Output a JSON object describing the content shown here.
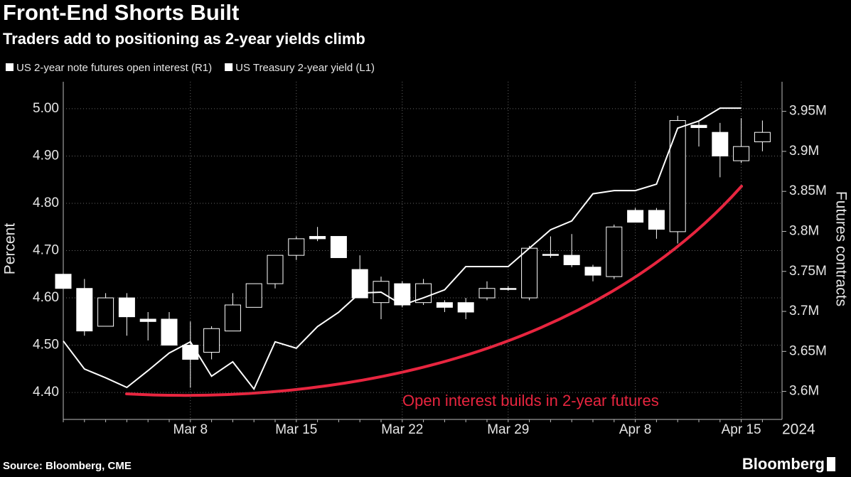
{
  "chart_data": {
    "type": "combo",
    "title": "Front-End Shorts Built",
    "subtitle": "Traders add to positioning as 2-year yields climb",
    "categories": [
      null,
      null,
      null,
      null,
      null,
      null,
      "Mar 8",
      null,
      null,
      null,
      null,
      "Mar 15",
      null,
      null,
      null,
      null,
      "Mar 22",
      null,
      null,
      null,
      null,
      "Mar 29",
      null,
      null,
      null,
      null,
      null,
      "Apr 8",
      null,
      null,
      null,
      null,
      "Apr 15",
      null
    ],
    "xlabel": "2024",
    "ylabel": "Percent",
    "y2label": "Futures contracts",
    "ylim": [
      4.343,
      5.057
    ],
    "yticks": [
      {
        "value": 4.4,
        "label": "4.40"
      },
      {
        "value": 4.5,
        "label": "4.50"
      },
      {
        "value": 4.6,
        "label": "4.60"
      },
      {
        "value": 4.7,
        "label": "4.70"
      },
      {
        "value": 4.8,
        "label": "4.80"
      },
      {
        "value": 4.9,
        "label": "4.90"
      },
      {
        "value": 5,
        "label": "5.00"
      }
    ],
    "y2lim": [
      3565000,
      3987000
    ],
    "y2ticks": [
      {
        "value": 3600000,
        "label": "3.6M"
      },
      {
        "value": 3650000,
        "label": "3.65M"
      },
      {
        "value": 3700000,
        "label": "3.7M"
      },
      {
        "value": 3750000,
        "label": "3.75M"
      },
      {
        "value": 3800000,
        "label": "3.8M"
      },
      {
        "value": 3850000,
        "label": "3.85M"
      },
      {
        "value": 3900000,
        "label": "3.9M"
      },
      {
        "value": 3950000,
        "label": "3.95M"
      }
    ],
    "grid": true,
    "series": [
      {
        "name": "US 2-year note futures open interest (R1)",
        "type": "line",
        "axis": "y2",
        "color": "#ffffff",
        "values": [
          3663000,
          3628000,
          3617000,
          3605000,
          3626000,
          3648000,
          3662000,
          3619000,
          3637000,
          3603000,
          3662000,
          3654000,
          3681000,
          3699000,
          3723000,
          3724000,
          3708000,
          3717000,
          3727000,
          3756000,
          3756000,
          3756000,
          3779000,
          3802000,
          3813000,
          3847000,
          3851000,
          3851000,
          3859000,
          3929000,
          3938000,
          3954000,
          3954000,
          null
        ]
      },
      {
        "name": "US Treasury 2-year yield (L1)",
        "type": "candlestick",
        "axis": "y",
        "color": "#ffffff",
        "open": [
          4.65,
          4.62,
          4.54,
          4.6,
          4.555,
          4.555,
          4.5,
          4.485,
          4.53,
          4.58,
          4.63,
          4.69,
          4.73,
          4.73,
          4.66,
          4.59,
          4.63,
          4.59,
          4.59,
          4.59,
          4.6,
          4.62,
          4.6,
          4.692,
          4.69,
          4.665,
          4.645,
          4.785,
          4.785,
          4.74,
          4.965,
          4.95,
          4.89,
          4.93
        ],
        "high": [
          4.65,
          4.64,
          4.61,
          4.61,
          4.57,
          4.57,
          4.55,
          4.54,
          4.61,
          4.63,
          4.69,
          4.73,
          4.75,
          4.73,
          4.69,
          4.645,
          4.635,
          4.64,
          4.595,
          4.6,
          4.635,
          4.625,
          4.71,
          4.73,
          4.735,
          4.67,
          4.755,
          4.79,
          4.79,
          4.985,
          4.975,
          4.97,
          4.98,
          4.975
        ],
        "low": [
          4.62,
          4.52,
          4.54,
          4.52,
          4.51,
          4.5,
          4.41,
          4.47,
          4.53,
          4.58,
          4.62,
          4.68,
          4.72,
          4.685,
          4.6,
          4.555,
          4.58,
          4.585,
          4.57,
          4.555,
          4.595,
          4.615,
          4.595,
          4.685,
          4.665,
          4.635,
          4.64,
          4.76,
          4.725,
          4.715,
          4.92,
          4.855,
          4.885,
          4.91
        ],
        "close": [
          4.62,
          4.53,
          4.6,
          4.56,
          4.55,
          4.5,
          4.47,
          4.535,
          4.585,
          4.63,
          4.69,
          4.725,
          4.725,
          4.685,
          4.6,
          4.635,
          4.585,
          4.63,
          4.58,
          4.57,
          4.62,
          4.62,
          4.705,
          4.69,
          4.67,
          4.648,
          4.75,
          4.76,
          4.745,
          4.975,
          4.96,
          4.9,
          4.92,
          4.95
        ]
      }
    ],
    "annotation": "Open interest builds in 2-year futures",
    "annotation_color": "#e8253f",
    "source": "Source: Bloomberg, CME",
    "brand": "Bloomberg"
  }
}
